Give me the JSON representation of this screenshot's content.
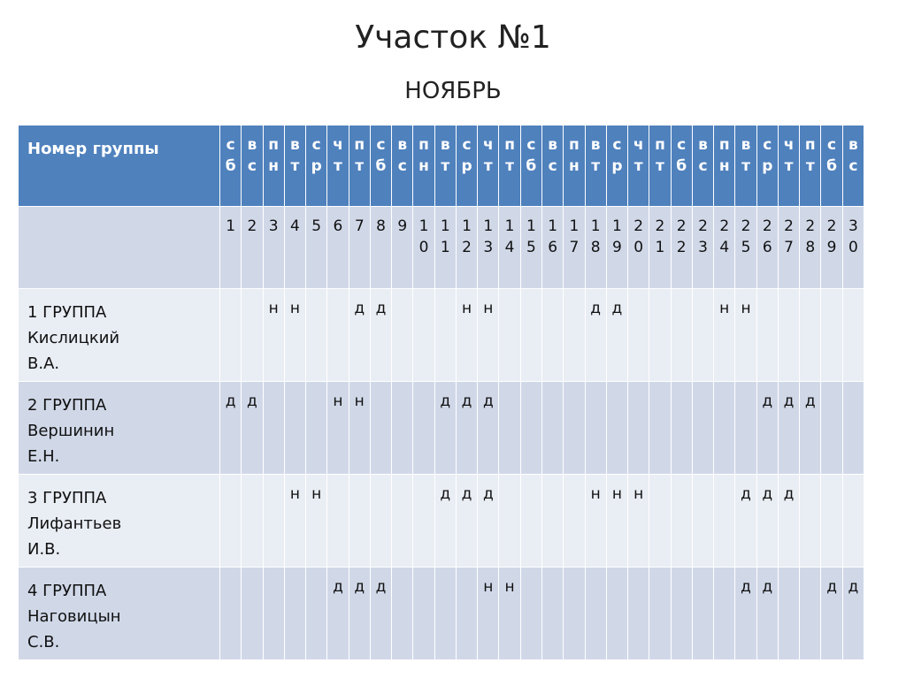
{
  "header": {
    "title": "Участок №1",
    "subtitle": "НОЯБРЬ"
  },
  "table": {
    "corner": "Номер группы",
    "weekdays": [
      "сб",
      "вс",
      "пн",
      "вт",
      "ср",
      "чт",
      "пт",
      "сб",
      "вс",
      "пн",
      "вт",
      "ср",
      "чт",
      "пт",
      "сб",
      "вс",
      "пн",
      "вт",
      "ср",
      "чт",
      "пт",
      "сб",
      "вс",
      "пн",
      "вт",
      "ср",
      "чт",
      "пт",
      "сб",
      "вс"
    ],
    "days": [
      1,
      2,
      3,
      4,
      5,
      6,
      7,
      8,
      9,
      10,
      11,
      12,
      13,
      14,
      15,
      16,
      17,
      18,
      19,
      20,
      21,
      22,
      23,
      24,
      25,
      26,
      27,
      28,
      29,
      30
    ],
    "rows": [
      {
        "label": [
          "1 ГРУППА",
          "Кислицкий",
          "В.А."
        ],
        "cells": [
          null,
          null,
          "н",
          "н",
          null,
          null,
          "д",
          "д",
          null,
          null,
          null,
          "н",
          "н",
          null,
          null,
          null,
          null,
          "д",
          "д",
          null,
          null,
          null,
          null,
          "н",
          "н",
          null,
          null,
          null,
          null,
          null
        ]
      },
      {
        "label": [
          "2 ГРУППА",
          "Вершинин",
          "Е.Н."
        ],
        "cells": [
          "д",
          "д",
          null,
          null,
          null,
          "н",
          "н",
          null,
          null,
          null,
          "д",
          "д",
          "д",
          null,
          null,
          null,
          null,
          null,
          null,
          null,
          null,
          null,
          null,
          null,
          null,
          "д",
          "д",
          "д",
          null,
          null
        ]
      },
      {
        "label": [
          "3 ГРУППА",
          "Лифантьев",
          "И.В."
        ],
        "cells": [
          null,
          null,
          null,
          "н",
          "н",
          null,
          null,
          null,
          null,
          null,
          "д",
          "д",
          "д",
          null,
          null,
          null,
          null,
          "н",
          "н",
          "н",
          null,
          null,
          null,
          null,
          "д",
          "д",
          "д",
          null,
          null,
          null
        ]
      },
      {
        "label": [
          "4 ГРУППА",
          "Наговицын",
          "С.В."
        ],
        "cells": [
          null,
          null,
          null,
          null,
          null,
          "д",
          "д",
          "д",
          null,
          null,
          null,
          null,
          "н",
          "н",
          null,
          null,
          null,
          null,
          null,
          null,
          null,
          null,
          null,
          null,
          "д",
          "д",
          null,
          null,
          "д",
          "д"
        ]
      }
    ]
  }
}
